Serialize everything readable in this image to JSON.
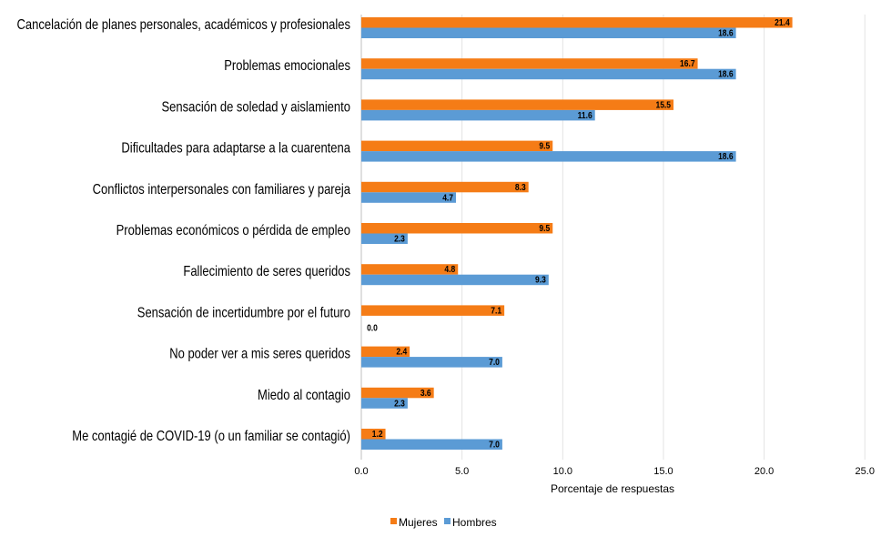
{
  "chart_data": {
    "type": "bar",
    "orientation": "horizontal",
    "categories": [
      "Cancelación de planes personales, académicos y profesionales",
      "Problemas emocionales",
      "Sensación de soledad y aislamiento",
      "Dificultades para adaptarse a la cuarentena",
      "Conflictos interpersonales con familiares y pareja",
      "Problemas económicos o pérdida de empleo",
      "Fallecimiento de seres queridos",
      "Sensación de incertidumbre por el futuro",
      "No poder ver a mis seres queridos",
      "Miedo al contagio",
      "Me contagié de COVID-19 (o un familiar se contagió)"
    ],
    "series": [
      {
        "name": "Mujeres",
        "color": "#f57c16",
        "values": [
          21.4,
          16.7,
          15.5,
          9.5,
          8.3,
          9.5,
          4.8,
          7.1,
          2.4,
          3.6,
          1.2
        ]
      },
      {
        "name": "Hombres",
        "color": "#5b9bd5",
        "values": [
          18.6,
          18.6,
          11.6,
          18.6,
          4.7,
          2.3,
          9.3,
          0.0,
          7.0,
          2.3,
          7.0
        ]
      }
    ],
    "xlabel": "Porcentaje de respuestas",
    "ylabel": "",
    "xlim": [
      0,
      25
    ],
    "xticks": [
      "0.0",
      "5.0",
      "10.0",
      "15.0",
      "20.0",
      "25.0"
    ],
    "grid": "vertical",
    "legend_position": "bottom"
  }
}
